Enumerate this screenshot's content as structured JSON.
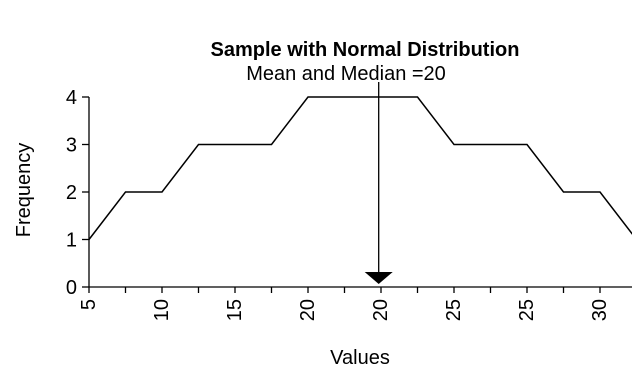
{
  "chart_data": {
    "type": "line",
    "title": "Sample with Normal Distribution",
    "xlabel": "Values",
    "ylabel": "Frequency",
    "x_tick_labels": [
      "5",
      "10",
      "15",
      "20",
      "20",
      "25",
      "25",
      "30"
    ],
    "y_tick_labels": [
      "0",
      "1",
      "2",
      "3",
      "4"
    ],
    "ylim": [
      0,
      4
    ],
    "grid": false,
    "series": [
      {
        "values": [
          1,
          2,
          2,
          3,
          3,
          3,
          4,
          4,
          4,
          4,
          3,
          3,
          3,
          2,
          2,
          1
        ]
      }
    ],
    "annotation": {
      "text": "Mean and Median =20",
      "x_index": 7.8
    },
    "colors": {
      "line": "#000000",
      "axis": "#000000",
      "background": "#ffffff"
    }
  }
}
